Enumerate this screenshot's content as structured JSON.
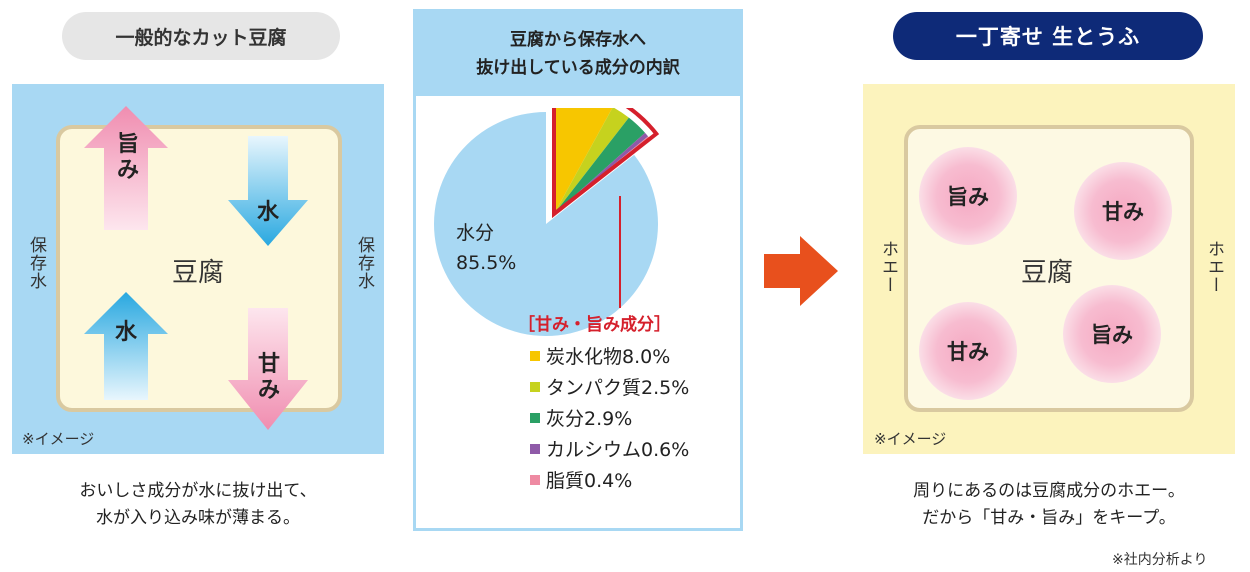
{
  "left": {
    "title": "一般的なカット豆腐",
    "side_label": "保存水",
    "tofu": "豆腐",
    "arrows": {
      "umami": "旨み",
      "water_down": "水",
      "water_up": "水",
      "sweet": "甘み"
    },
    "note": "※イメージ",
    "caption_line1": "おいしさ成分が水に抜け出て、",
    "caption_line2": "水が入り込み味が薄まる。",
    "colors": {
      "background": "#a8d8f3",
      "tofu": "#fdf8dc",
      "arrow_pink": "#f08db0",
      "arrow_blue": "#29a8e0"
    }
  },
  "middle": {
    "title_line1": "豆腐から保存水へ",
    "title_line2": "抜け出している成分の内訳",
    "water_label": "水分",
    "water_value": "85.5%",
    "legend_title": "［甘み・旨み成分］",
    "legend": [
      {
        "label": "炭水化物8.0%",
        "color": "#f7c600"
      },
      {
        "label": "タンパク質2.5%",
        "color": "#c6d21e"
      },
      {
        "label": "灰分2.9%",
        "color": "#2aa065"
      },
      {
        "label": "カルシウム0.6%",
        "color": "#8f5aa8"
      },
      {
        "label": "脂質0.4%",
        "color": "#ee8aa2"
      }
    ]
  },
  "chart_data": {
    "type": "pie",
    "title": "豆腐から保存水へ抜け出している成分の内訳",
    "slices": [
      {
        "label": "水分",
        "value": 85.5,
        "color": "#a8d8f3"
      },
      {
        "label": "炭水化物",
        "value": 8.0,
        "color": "#f7c600"
      },
      {
        "label": "タンパク質",
        "value": 2.5,
        "color": "#c6d21e"
      },
      {
        "label": "灰分",
        "value": 2.9,
        "color": "#2aa065"
      },
      {
        "label": "カルシウム",
        "value": 0.6,
        "color": "#8f5aa8"
      },
      {
        "label": "脂質",
        "value": 0.4,
        "color": "#ee8aa2"
      }
    ],
    "highlight_group": "［甘み・旨み成分］",
    "highlight_color": "#d5202c"
  },
  "right": {
    "title": "一丁寄せ 生とうふ",
    "side_label": "ホエー",
    "tofu": "豆腐",
    "blobs": [
      "旨み",
      "甘み",
      "甘み",
      "旨み"
    ],
    "note": "※イメージ",
    "caption_line1": "周りにあるのは豆腐成分のホエー。",
    "caption_line2": "だから「甘み・旨み」をキープ。",
    "colors": {
      "background": "#fcf3bd",
      "title_pill": "#0e2a78",
      "blob": "#f6a9c2"
    }
  },
  "source_note": "※社内分析より",
  "colors": {
    "transition_arrow": "#e8501d"
  }
}
